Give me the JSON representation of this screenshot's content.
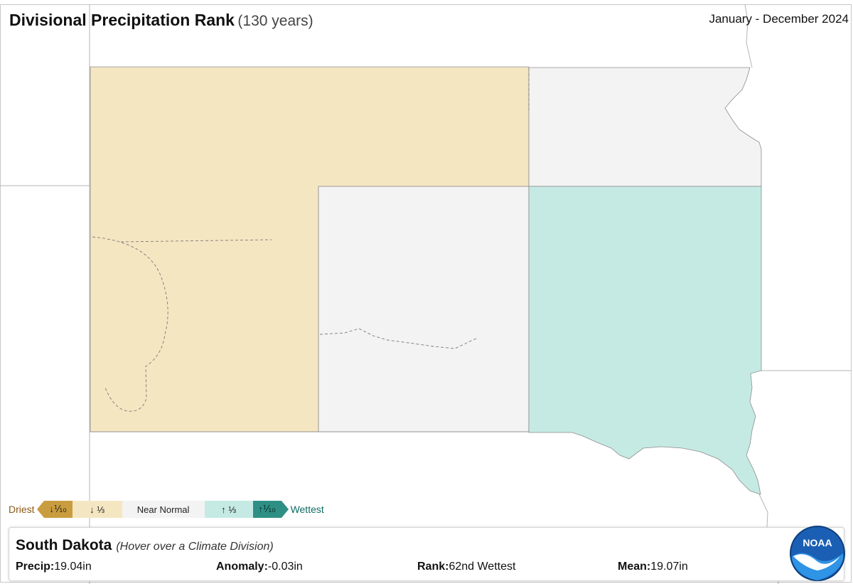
{
  "header": {
    "title": "Divisional Precipitation Rank",
    "title_suffix": "(130 years)",
    "period": "January - December 2024"
  },
  "colors": {
    "driest_tenth": "#c99d3f",
    "below_third": "#f5e6c2",
    "near_normal": "#f3f3f3",
    "above_third": "#c5eae4",
    "wettest_tenth": "#2e8f85",
    "boundary": "#9a9a9a"
  },
  "map": {
    "state": "South Dakota",
    "divisions": [
      {
        "name": "northwest-and-western",
        "category": "below_third"
      },
      {
        "name": "north-east",
        "category": "near_normal"
      },
      {
        "name": "central",
        "category": "near_normal"
      },
      {
        "name": "south-east",
        "category": "above_third"
      }
    ]
  },
  "legend": {
    "driest_label": "Driest",
    "wettest_label": "Wettest",
    "items": [
      {
        "label": "↓⅒",
        "category": "driest_tenth"
      },
      {
        "label": "↓ ⅓",
        "category": "below_third"
      },
      {
        "label": "Near Normal",
        "category": "near_normal"
      },
      {
        "label": "↑ ⅓",
        "category": "above_third"
      },
      {
        "label": "↑⅒",
        "category": "wettest_tenth"
      }
    ]
  },
  "info": {
    "state": "South Dakota",
    "hint": "(Hover over a Climate Division)",
    "precip_label": "Precip:",
    "precip_value": "19.04in",
    "anomaly_label": "Anomaly:",
    "anomaly_value": "-0.03in",
    "rank_label": "Rank:",
    "rank_value": "62nd Wettest",
    "mean_label": "Mean:",
    "mean_value": "19.07in"
  },
  "logo": {
    "text": "NOAA"
  }
}
